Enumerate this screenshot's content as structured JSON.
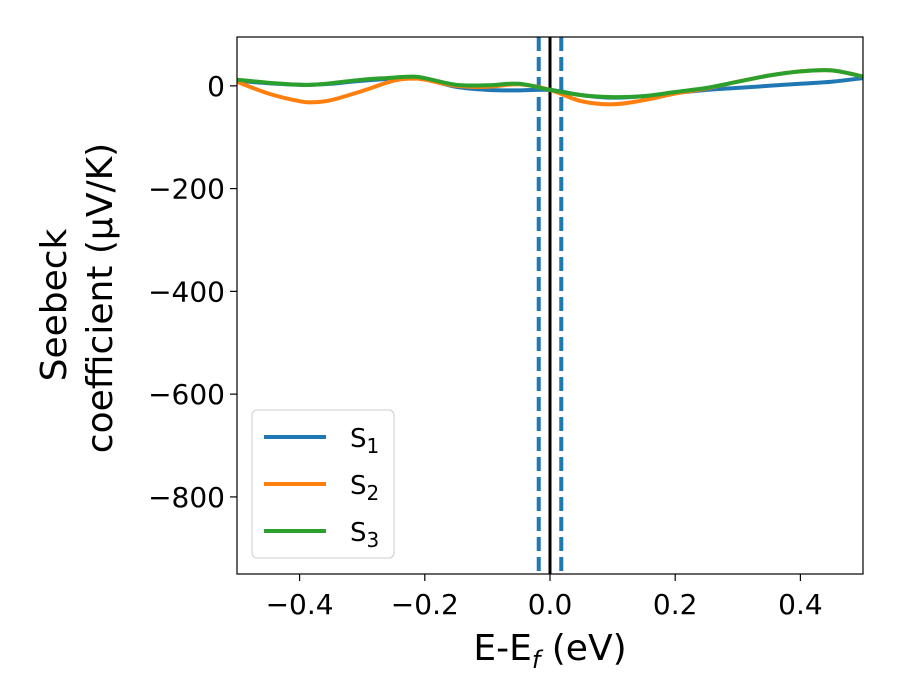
{
  "chart_data": {
    "type": "line",
    "xlabel": "E-E",
    "xlabel_sub": "f",
    "xlabel_unit": " (eV)",
    "ylabel_line1": "Seebeck",
    "ylabel_line2": "coefficient  (μV/K)",
    "xlim": [
      -0.5,
      0.5
    ],
    "ylim": [
      -950,
      95
    ],
    "xticks": [
      -0.4,
      -0.2,
      0.0,
      0.2,
      0.4
    ],
    "xtick_labels": [
      "−0.4",
      "−0.2",
      "0.0",
      "0.2",
      "0.4"
    ],
    "yticks": [
      0,
      -200,
      -400,
      -600,
      -800
    ],
    "ytick_labels": [
      "0",
      "−200",
      "−400",
      "−600",
      "−800"
    ],
    "grid": false,
    "legend_position": "lower-left",
    "vlines": [
      {
        "x": 0.0,
        "color": "#000000",
        "style": "solid"
      },
      {
        "x": -0.018,
        "color": "#1f77b4",
        "style": "dashed"
      },
      {
        "x": 0.018,
        "color": "#1f77b4",
        "style": "dashed"
      }
    ],
    "series": [
      {
        "name": "S",
        "sub": "1",
        "color": "#1f77b4",
        "x": [
          -0.5,
          -0.45,
          -0.4,
          -0.38,
          -0.35,
          -0.3,
          -0.25,
          -0.22,
          -0.2,
          -0.15,
          -0.1,
          -0.05,
          0.0,
          0.05,
          0.1,
          0.15,
          0.2,
          0.25,
          0.3,
          0.35,
          0.4,
          0.45,
          0.5
        ],
        "y": [
          10,
          5,
          2,
          2,
          4,
          10,
          14,
          17,
          14,
          -2,
          -8,
          -9,
          -8,
          -18,
          -23,
          -20,
          -14,
          -8,
          -4,
          0,
          4,
          8,
          15
        ]
      },
      {
        "name": "S",
        "sub": "2",
        "color": "#ff7f0e",
        "x": [
          -0.5,
          -0.45,
          -0.4,
          -0.38,
          -0.35,
          -0.3,
          -0.25,
          -0.22,
          -0.2,
          -0.15,
          -0.1,
          -0.05,
          0.0,
          0.05,
          0.1,
          0.15,
          0.2,
          0.25,
          0.3,
          0.35,
          0.4,
          0.45,
          0.5
        ],
        "y": [
          8,
          -15,
          -30,
          -32,
          -28,
          -10,
          10,
          14,
          12,
          0,
          -2,
          3,
          -8,
          -30,
          -36,
          -28,
          -15,
          -5,
          8,
          20,
          28,
          30,
          18
        ]
      },
      {
        "name": "S",
        "sub": "3",
        "color": "#2ca02c",
        "x": [
          -0.5,
          -0.45,
          -0.4,
          -0.38,
          -0.35,
          -0.3,
          -0.25,
          -0.22,
          -0.2,
          -0.15,
          -0.1,
          -0.05,
          0.0,
          0.05,
          0.1,
          0.15,
          0.2,
          0.25,
          0.3,
          0.35,
          0.4,
          0.45,
          0.5
        ],
        "y": [
          12,
          6,
          2,
          2,
          5,
          12,
          16,
          18,
          15,
          2,
          1,
          4,
          -8,
          -18,
          -22,
          -20,
          -12,
          -4,
          8,
          20,
          28,
          30,
          18
        ]
      }
    ]
  }
}
